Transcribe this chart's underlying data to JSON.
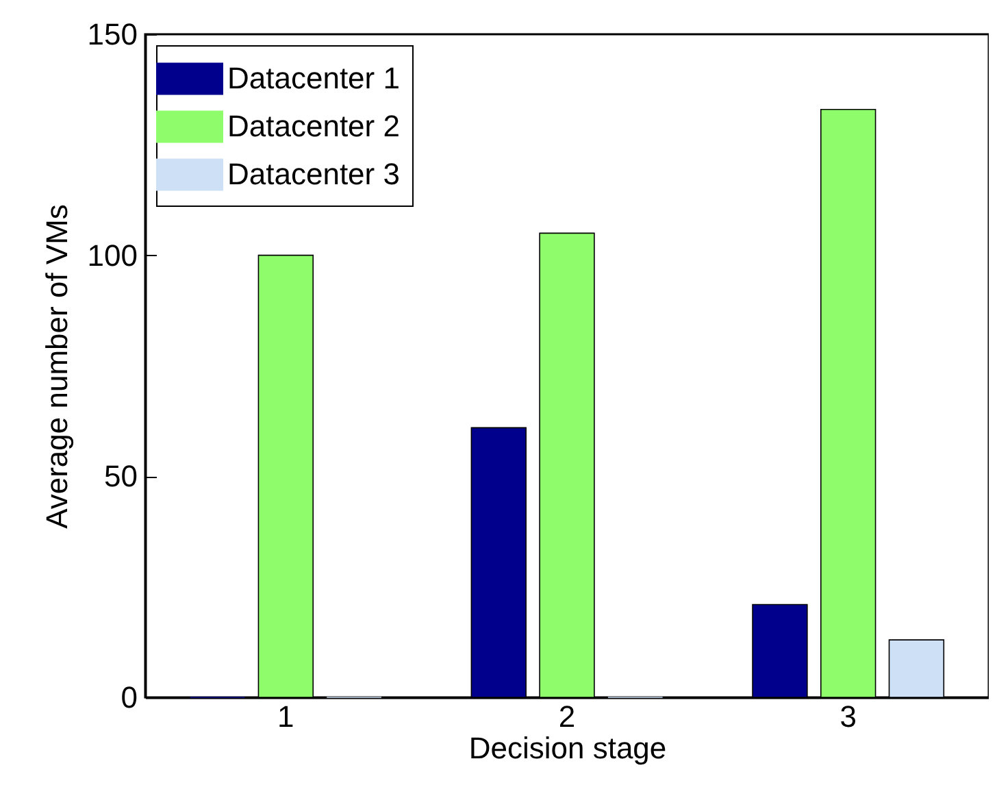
{
  "chart_data": {
    "type": "bar",
    "xlabel": "Decision stage",
    "ylabel": "Average number of VMs",
    "categories": [
      "1",
      "2",
      "3"
    ],
    "series": [
      {
        "name": "Datacenter 1",
        "color": "#00008c",
        "values": [
          0,
          61,
          21
        ]
      },
      {
        "name": "Datacenter 2",
        "color": "#8ffd6b",
        "values": [
          100,
          105,
          133
        ]
      },
      {
        "name": "Datacenter 3",
        "color": "#cde0f5",
        "values": [
          0,
          0,
          13
        ]
      }
    ],
    "ylim": [
      0,
      150
    ],
    "yticks": [
      0,
      50,
      100,
      150
    ],
    "grid": false,
    "legend": "top left"
  }
}
